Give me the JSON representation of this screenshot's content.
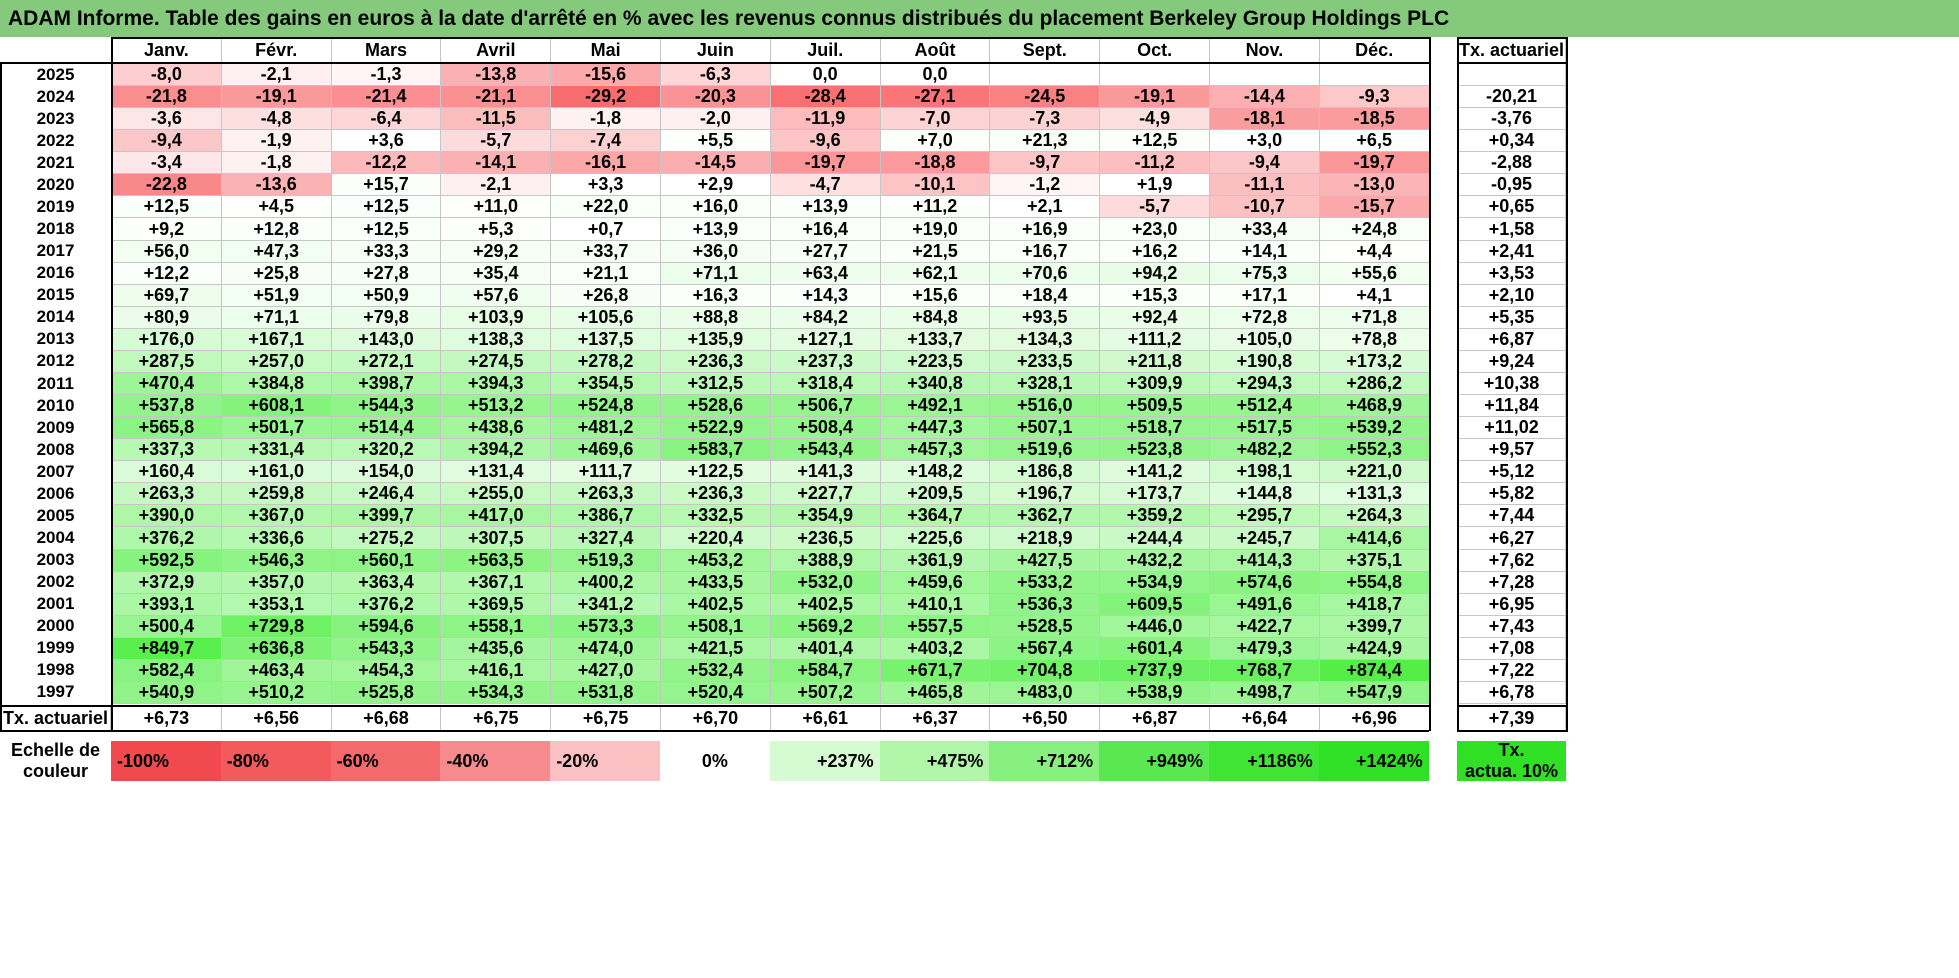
{
  "title": "ADAM Informe. Table des gains en euros à la date d'arrêté en % avec les revenus connus distribués du placement Berkeley Group Holdings PLC",
  "months": [
    "Janv.",
    "Févr.",
    "Mars",
    "Avril",
    "Mai",
    "Juin",
    "Juil.",
    "Août",
    "Sept.",
    "Oct.",
    "Nov.",
    "Déc."
  ],
  "actuarial_header": "Tx. actuariel",
  "rows": [
    {
      "year": "2025",
      "values": [
        "-8,0",
        "-2,1",
        "-1,3",
        "-13,8",
        "-15,6",
        "-6,3",
        "0,0",
        "0,0",
        "",
        "",
        "",
        ""
      ],
      "rate": ""
    },
    {
      "year": "2024",
      "values": [
        "-21,8",
        "-19,1",
        "-21,4",
        "-21,1",
        "-29,2",
        "-20,3",
        "-28,4",
        "-27,1",
        "-24,5",
        "-19,1",
        "-14,4",
        "-9,3"
      ],
      "rate": "-20,21"
    },
    {
      "year": "2023",
      "values": [
        "-3,6",
        "-4,8",
        "-6,4",
        "-11,5",
        "-1,8",
        "-2,0",
        "-11,9",
        "-7,0",
        "-7,3",
        "-4,9",
        "-18,1",
        "-18,5"
      ],
      "rate": "-3,76"
    },
    {
      "year": "2022",
      "values": [
        "-9,4",
        "-1,9",
        "+3,6",
        "-5,7",
        "-7,4",
        "+5,5",
        "-9,6",
        "+7,0",
        "+21,3",
        "+12,5",
        "+3,0",
        "+6,5"
      ],
      "rate": "+0,34"
    },
    {
      "year": "2021",
      "values": [
        "-3,4",
        "-1,8",
        "-12,2",
        "-14,1",
        "-16,1",
        "-14,5",
        "-19,7",
        "-18,8",
        "-9,7",
        "-11,2",
        "-9,4",
        "-19,7"
      ],
      "rate": "-2,88"
    },
    {
      "year": "2020",
      "values": [
        "-22,8",
        "-13,6",
        "+15,7",
        "-2,1",
        "+3,3",
        "+2,9",
        "-4,7",
        "-10,1",
        "-1,2",
        "+1,9",
        "-11,1",
        "-13,0"
      ],
      "rate": "-0,95"
    },
    {
      "year": "2019",
      "values": [
        "+12,5",
        "+4,5",
        "+12,5",
        "+11,0",
        "+22,0",
        "+16,0",
        "+13,9",
        "+11,2",
        "+2,1",
        "-5,7",
        "-10,7",
        "-15,7"
      ],
      "rate": "+0,65"
    },
    {
      "year": "2018",
      "values": [
        "+9,2",
        "+12,8",
        "+12,5",
        "+5,3",
        "+0,7",
        "+13,9",
        "+16,4",
        "+19,0",
        "+16,9",
        "+23,0",
        "+33,4",
        "+24,8"
      ],
      "rate": "+1,58"
    },
    {
      "year": "2017",
      "values": [
        "+56,0",
        "+47,3",
        "+33,3",
        "+29,2",
        "+33,7",
        "+36,0",
        "+27,7",
        "+21,5",
        "+16,7",
        "+16,2",
        "+14,1",
        "+4,4"
      ],
      "rate": "+2,41"
    },
    {
      "year": "2016",
      "values": [
        "+12,2",
        "+25,8",
        "+27,8",
        "+35,4",
        "+21,1",
        "+71,1",
        "+63,4",
        "+62,1",
        "+70,6",
        "+94,2",
        "+75,3",
        "+55,6"
      ],
      "rate": "+3,53"
    },
    {
      "year": "2015",
      "values": [
        "+69,7",
        "+51,9",
        "+50,9",
        "+57,6",
        "+26,8",
        "+16,3",
        "+14,3",
        "+15,6",
        "+18,4",
        "+15,3",
        "+17,1",
        "+4,1"
      ],
      "rate": "+2,10"
    },
    {
      "year": "2014",
      "values": [
        "+80,9",
        "+71,1",
        "+79,8",
        "+103,9",
        "+105,6",
        "+88,8",
        "+84,2",
        "+84,8",
        "+93,5",
        "+92,4",
        "+72,8",
        "+71,8"
      ],
      "rate": "+5,35"
    },
    {
      "year": "2013",
      "values": [
        "+176,0",
        "+167,1",
        "+143,0",
        "+138,3",
        "+137,5",
        "+135,9",
        "+127,1",
        "+133,7",
        "+134,3",
        "+111,2",
        "+105,0",
        "+78,8"
      ],
      "rate": "+6,87"
    },
    {
      "year": "2012",
      "values": [
        "+287,5",
        "+257,0",
        "+272,1",
        "+274,5",
        "+278,2",
        "+236,3",
        "+237,3",
        "+223,5",
        "+233,5",
        "+211,8",
        "+190,8",
        "+173,2"
      ],
      "rate": "+9,24"
    },
    {
      "year": "2011",
      "values": [
        "+470,4",
        "+384,8",
        "+398,7",
        "+394,3",
        "+354,5",
        "+312,5",
        "+318,4",
        "+340,8",
        "+328,1",
        "+309,9",
        "+294,3",
        "+286,2"
      ],
      "rate": "+10,38"
    },
    {
      "year": "2010",
      "values": [
        "+537,8",
        "+608,1",
        "+544,3",
        "+513,2",
        "+524,8",
        "+528,6",
        "+506,7",
        "+492,1",
        "+516,0",
        "+509,5",
        "+512,4",
        "+468,9"
      ],
      "rate": "+11,84"
    },
    {
      "year": "2009",
      "values": [
        "+565,8",
        "+501,7",
        "+514,4",
        "+438,6",
        "+481,2",
        "+522,9",
        "+508,4",
        "+447,3",
        "+507,1",
        "+518,7",
        "+517,5",
        "+539,2"
      ],
      "rate": "+11,02"
    },
    {
      "year": "2008",
      "values": [
        "+337,3",
        "+331,4",
        "+320,2",
        "+394,2",
        "+469,6",
        "+583,7",
        "+543,4",
        "+457,3",
        "+519,6",
        "+523,8",
        "+482,2",
        "+552,3"
      ],
      "rate": "+9,57"
    },
    {
      "year": "2007",
      "values": [
        "+160,4",
        "+161,0",
        "+154,0",
        "+131,4",
        "+111,7",
        "+122,5",
        "+141,3",
        "+148,2",
        "+186,8",
        "+141,2",
        "+198,1",
        "+221,0"
      ],
      "rate": "+5,12"
    },
    {
      "year": "2006",
      "values": [
        "+263,3",
        "+259,8",
        "+246,4",
        "+255,0",
        "+263,3",
        "+236,3",
        "+227,7",
        "+209,5",
        "+196,7",
        "+173,7",
        "+144,8",
        "+131,3"
      ],
      "rate": "+5,82"
    },
    {
      "year": "2005",
      "values": [
        "+390,0",
        "+367,0",
        "+399,7",
        "+417,0",
        "+386,7",
        "+332,5",
        "+354,9",
        "+364,7",
        "+362,7",
        "+359,2",
        "+295,7",
        "+264,3"
      ],
      "rate": "+7,44"
    },
    {
      "year": "2004",
      "values": [
        "+376,2",
        "+336,6",
        "+275,2",
        "+307,5",
        "+327,4",
        "+220,4",
        "+236,5",
        "+225,6",
        "+218,9",
        "+244,4",
        "+245,7",
        "+414,6"
      ],
      "rate": "+6,27"
    },
    {
      "year": "2003",
      "values": [
        "+592,5",
        "+546,3",
        "+560,1",
        "+563,5",
        "+519,3",
        "+453,2",
        "+388,9",
        "+361,9",
        "+427,5",
        "+432,2",
        "+414,3",
        "+375,1"
      ],
      "rate": "+7,62"
    },
    {
      "year": "2002",
      "values": [
        "+372,9",
        "+357,0",
        "+363,4",
        "+367,1",
        "+400,2",
        "+433,5",
        "+532,0",
        "+459,6",
        "+533,2",
        "+534,9",
        "+574,6",
        "+554,8"
      ],
      "rate": "+7,28"
    },
    {
      "year": "2001",
      "values": [
        "+393,1",
        "+353,1",
        "+376,2",
        "+369,5",
        "+341,2",
        "+402,5",
        "+402,5",
        "+410,1",
        "+536,3",
        "+609,5",
        "+491,6",
        "+418,7"
      ],
      "rate": "+6,95"
    },
    {
      "year": "2000",
      "values": [
        "+500,4",
        "+729,8",
        "+594,6",
        "+558,1",
        "+573,3",
        "+508,1",
        "+569,2",
        "+557,5",
        "+528,5",
        "+446,0",
        "+422,7",
        "+399,7"
      ],
      "rate": "+7,43"
    },
    {
      "year": "1999",
      "values": [
        "+849,7",
        "+636,8",
        "+543,3",
        "+435,6",
        "+474,0",
        "+421,5",
        "+401,4",
        "+403,2",
        "+567,4",
        "+601,4",
        "+479,3",
        "+424,9"
      ],
      "rate": "+7,08"
    },
    {
      "year": "1998",
      "values": [
        "+582,4",
        "+463,4",
        "+454,3",
        "+416,1",
        "+427,0",
        "+532,4",
        "+584,7",
        "+671,7",
        "+704,8",
        "+737,9",
        "+768,7",
        "+874,4"
      ],
      "rate": "+7,22"
    },
    {
      "year": "1997",
      "values": [
        "+540,9",
        "+510,2",
        "+525,8",
        "+534,3",
        "+531,8",
        "+520,4",
        "+507,2",
        "+465,8",
        "+483,0",
        "+538,9",
        "+498,7",
        "+547,9"
      ],
      "rate": "+6,78"
    }
  ],
  "footer": {
    "label": "Tx. actuariel",
    "values": [
      "+6,73",
      "+6,56",
      "+6,68",
      "+6,75",
      "+6,75",
      "+6,70",
      "+6,61",
      "+6,37",
      "+6,50",
      "+6,87",
      "+6,64",
      "+6,96"
    ],
    "rate": "+7,39"
  },
  "scale": {
    "label_line1": "Echelle de",
    "label_line2": "couleur",
    "items": [
      {
        "text": "-100%",
        "color": "#f04a4e"
      },
      {
        "text": "-80%",
        "color": "#f25a5d"
      },
      {
        "text": "-60%",
        "color": "#f4696c"
      },
      {
        "text": "-40%",
        "color": "#f68a8c"
      },
      {
        "text": "-20%",
        "color": "#fbc0c1"
      },
      {
        "text": "0%",
        "color": "#ffffff"
      },
      {
        "text": "+237%",
        "color": "#d6fbd3"
      },
      {
        "text": "+475%",
        "color": "#b0f5a8"
      },
      {
        "text": "+712%",
        "color": "#88f07e"
      },
      {
        "text": "+949%",
        "color": "#5ae850"
      },
      {
        "text": "+1186%",
        "color": "#3fe434"
      },
      {
        "text": "+1424%",
        "color": "#2fe024"
      }
    ],
    "rate_box_line1": "Tx.",
    "rate_box_line2": "actua. 10%",
    "rate_box_color": "#2fe024"
  },
  "colors": {
    "title_bar": "#84c97c",
    "negative_max": "#f8696b",
    "positive_max": "#63be7b",
    "neutral": "#ffffff"
  }
}
